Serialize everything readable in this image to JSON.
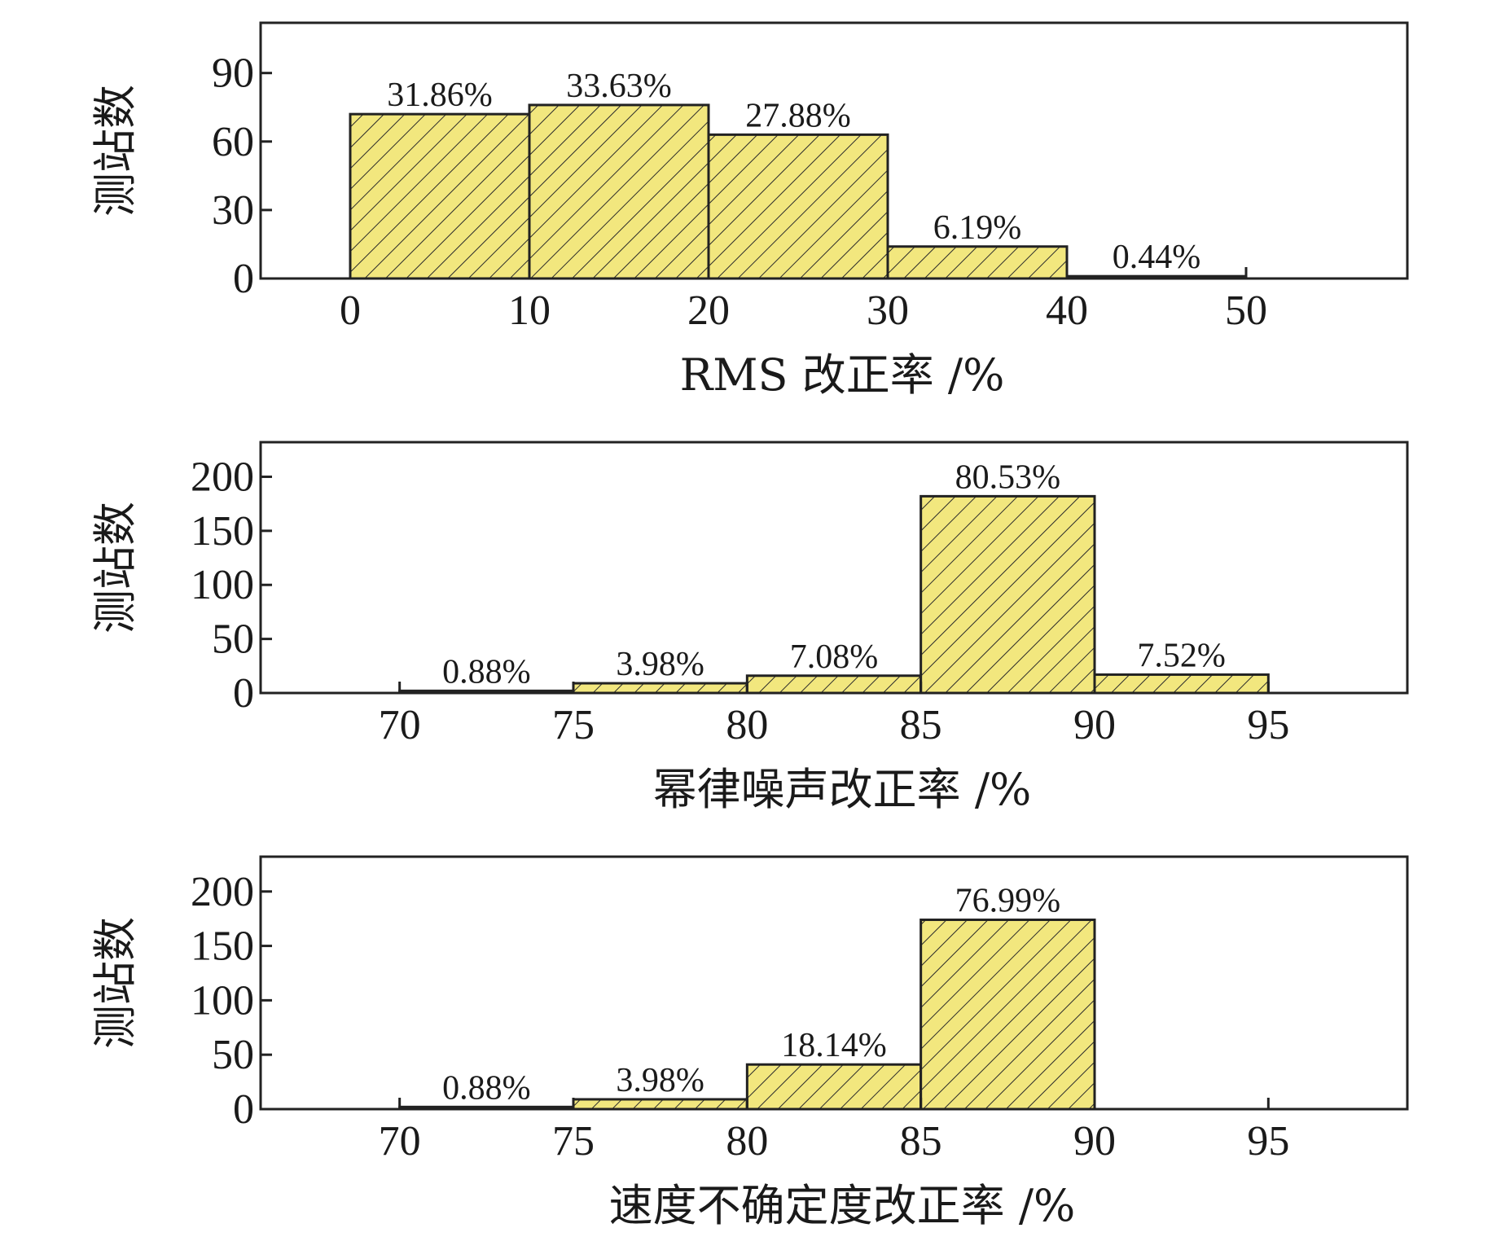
{
  "colors": {
    "bar_fill": "#f2e77e",
    "hatch": "#2a2a2a",
    "frame": "#222222",
    "background": "#ffffff"
  },
  "chart_data": [
    {
      "type": "bar",
      "bins": [
        [
          0,
          10
        ],
        [
          10,
          20
        ],
        [
          20,
          30
        ],
        [
          30,
          40
        ],
        [
          40,
          50
        ]
      ],
      "values": [
        72,
        76,
        63,
        14,
        1
      ],
      "labels": [
        "31.86%",
        "33.63%",
        "27.88%",
        "6.19%",
        "0.44%"
      ],
      "xticks": [
        0,
        10,
        20,
        30,
        40,
        50
      ],
      "yticks": [
        0,
        30,
        60,
        90
      ],
      "xlim": [
        -5,
        59
      ],
      "ylim": [
        0,
        112
      ],
      "xlabel": "RMS 改正率 /%",
      "ylabel": "测站数",
      "grid": false
    },
    {
      "type": "bar",
      "bins": [
        [
          70,
          75
        ],
        [
          75,
          80
        ],
        [
          80,
          85
        ],
        [
          85,
          90
        ],
        [
          90,
          95
        ]
      ],
      "values": [
        2,
        9,
        16,
        182,
        17
      ],
      "labels": [
        "0.88%",
        "3.98%",
        "7.08%",
        "80.53%",
        "7.52%"
      ],
      "xticks": [
        70,
        75,
        80,
        85,
        90,
        95
      ],
      "yticks": [
        0,
        50,
        100,
        150,
        200
      ],
      "xlim": [
        66,
        99
      ],
      "ylim": [
        0,
        232
      ],
      "xlabel": "幂律噪声改正率 /%",
      "ylabel": "测站数",
      "grid": false
    },
    {
      "type": "bar",
      "bins": [
        [
          70,
          75
        ],
        [
          75,
          80
        ],
        [
          80,
          85
        ],
        [
          85,
          90
        ]
      ],
      "values": [
        2,
        9,
        41,
        174
      ],
      "labels": [
        "0.88%",
        "3.98%",
        "18.14%",
        "76.99%"
      ],
      "xticks": [
        70,
        75,
        80,
        85,
        90,
        95
      ],
      "yticks": [
        0,
        50,
        100,
        150,
        200
      ],
      "xlim": [
        66,
        99
      ],
      "ylim": [
        0,
        232
      ],
      "xlabel": "速度不确定度改正率 /%",
      "ylabel": "测站数",
      "grid": false
    }
  ]
}
